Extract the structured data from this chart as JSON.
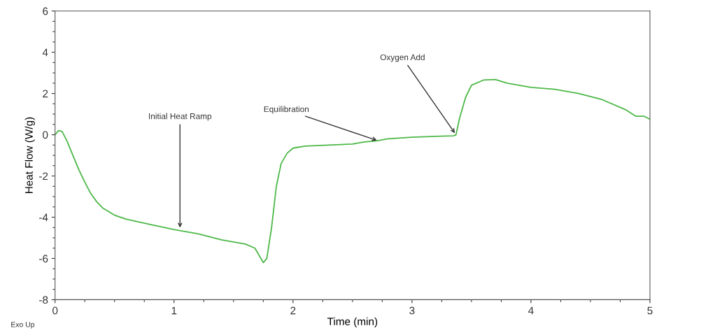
{
  "chart_data": {
    "type": "line",
    "xlabel": "Time (min)",
    "ylabel": "Heat Flow (W/g)",
    "xlim": [
      0,
      5
    ],
    "xticks": [
      0,
      1,
      2,
      3,
      4,
      5
    ],
    "ylim": [
      -8,
      6
    ],
    "yticks": [
      -8,
      -6,
      -4,
      -2,
      0,
      2,
      4,
      6
    ],
    "grid": false,
    "marker": "none",
    "line_style": "solid",
    "series": [
      {
        "color": "#4db848",
        "x": [
          0,
          0.03,
          0.06,
          0.1,
          0.15,
          0.2,
          0.25,
          0.3,
          0.35,
          0.4,
          0.5,
          0.6,
          0.8,
          1.0,
          1.2,
          1.4,
          1.6,
          1.68,
          1.72,
          1.75,
          1.78,
          1.82,
          1.86,
          1.9,
          1.95,
          2.0,
          2.1,
          2.3,
          2.5,
          2.6,
          2.7,
          2.8,
          3.0,
          3.2,
          3.35,
          3.37,
          3.4,
          3.45,
          3.5,
          3.6,
          3.7,
          3.8,
          4.0,
          4.2,
          4.4,
          4.6,
          4.8,
          4.88,
          4.95,
          5.0
        ],
        "values": [
          0.0,
          0.2,
          0.15,
          -0.3,
          -1.0,
          -1.7,
          -2.3,
          -2.85,
          -3.25,
          -3.55,
          -3.9,
          -4.1,
          -4.35,
          -4.6,
          -4.8,
          -5.1,
          -5.3,
          -5.5,
          -5.9,
          -6.2,
          -6.0,
          -4.5,
          -2.5,
          -1.4,
          -0.9,
          -0.65,
          -0.55,
          -0.5,
          -0.45,
          -0.35,
          -0.3,
          -0.2,
          -0.12,
          -0.08,
          -0.05,
          0.0,
          0.8,
          1.8,
          2.4,
          2.65,
          2.68,
          2.5,
          2.3,
          2.2,
          2.0,
          1.7,
          1.2,
          0.9,
          0.9,
          0.75
        ]
      }
    ],
    "annotations": [
      {
        "text": "Initial Heat Ramp",
        "x": 1.05,
        "y": -4.6
      },
      {
        "text": "Equilibration",
        "x": 2.72,
        "y": -0.3
      },
      {
        "text": "Oxygen Add",
        "x": 3.37,
        "y": 0.0
      },
      "Exo Up"
    ]
  }
}
